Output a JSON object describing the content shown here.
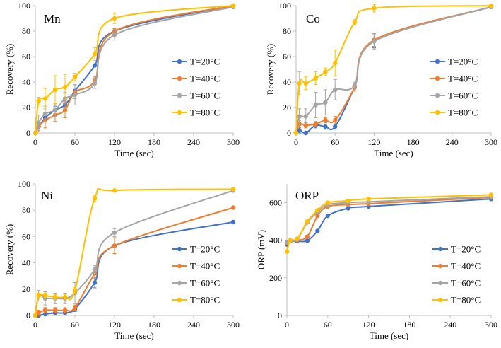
{
  "chart_data": [
    {
      "type": "line",
      "title": "Mn",
      "xlabel": "Time (sec)",
      "ylabel": "Recovery (%)",
      "xlim": [
        0,
        300
      ],
      "ylim": [
        0,
        100
      ],
      "xticks": [
        0,
        60,
        120,
        180,
        240,
        300
      ],
      "yticks": [
        0,
        20,
        40,
        60,
        80,
        100
      ],
      "legend_position": "right",
      "series": [
        {
          "name": "T=20°C",
          "color": "#4472c4",
          "x": [
            0,
            5,
            15,
            30,
            45,
            60,
            90,
            120,
            300
          ],
          "y": [
            0,
            5,
            12,
            18,
            22,
            33,
            53,
            80,
            100
          ],
          "err": [
            0,
            2,
            3,
            3,
            3,
            4,
            0,
            2,
            0
          ]
        },
        {
          "name": "T=40°C",
          "color": "#ed7d31",
          "x": [
            0,
            5,
            15,
            30,
            45,
            60,
            90,
            120,
            300
          ],
          "y": [
            0,
            5,
            10,
            14,
            18,
            32,
            41,
            80,
            100
          ],
          "err": [
            0,
            4,
            6,
            5,
            6,
            5,
            3,
            2,
            0
          ]
        },
        {
          "name": "T=60°C",
          "color": "#a5a5a5",
          "x": [
            0,
            5,
            15,
            30,
            45,
            60,
            90,
            120,
            300
          ],
          "y": [
            0,
            8,
            15,
            18,
            27,
            30,
            39,
            77,
            99
          ],
          "err": [
            0,
            6,
            6,
            5,
            5,
            8,
            4,
            4,
            0
          ]
        },
        {
          "name": "T=80°C",
          "color": "#ffc000",
          "x": [
            0,
            5,
            15,
            30,
            45,
            60,
            90,
            120,
            300
          ],
          "y": [
            0,
            25,
            27,
            34,
            36,
            44,
            62,
            90,
            100
          ],
          "err": [
            0,
            3,
            8,
            11,
            10,
            3,
            5,
            4,
            0
          ]
        }
      ]
    },
    {
      "type": "line",
      "title": "Co",
      "xlabel": "Time (sec)",
      "ylabel": "Recovery (%)",
      "xlim": [
        0,
        300
      ],
      "ylim": [
        0,
        100
      ],
      "xticks": [
        0,
        60,
        120,
        180,
        240,
        300
      ],
      "yticks": [
        0,
        20,
        40,
        60,
        80,
        100
      ],
      "legend_position": "right",
      "series": [
        {
          "name": "T=20°C",
          "color": "#4472c4",
          "x": [
            0,
            5,
            15,
            30,
            45,
            60,
            90,
            120,
            300
          ],
          "y": [
            0,
            2,
            0,
            6,
            5,
            5,
            36,
            72,
            99
          ],
          "err": [
            0,
            2,
            1,
            2,
            2,
            2,
            3,
            5,
            0
          ]
        },
        {
          "name": "T=40°C",
          "color": "#ed7d31",
          "x": [
            0,
            5,
            15,
            30,
            45,
            60,
            90,
            120,
            300
          ],
          "y": [
            0,
            7,
            6,
            7,
            10,
            10,
            36,
            73,
            99
          ],
          "err": [
            0,
            3,
            2,
            2,
            2,
            3,
            3,
            5,
            0
          ]
        },
        {
          "name": "T=60°C",
          "color": "#a5a5a5",
          "x": [
            0,
            5,
            15,
            30,
            45,
            60,
            90,
            120,
            300
          ],
          "y": [
            0,
            13,
            13,
            22,
            24,
            34,
            37,
            72,
            99
          ],
          "err": [
            0,
            6,
            6,
            10,
            10,
            8,
            3,
            6,
            0
          ]
        },
        {
          "name": "T=80°C",
          "color": "#ffc000",
          "x": [
            0,
            5,
            15,
            30,
            45,
            60,
            90,
            120,
            300
          ],
          "y": [
            0,
            39,
            39,
            43,
            48,
            55,
            87,
            98,
            100
          ],
          "err": [
            0,
            9,
            5,
            5,
            3,
            10,
            2,
            3,
            0
          ]
        }
      ]
    },
    {
      "type": "line",
      "title": "Ni",
      "xlabel": "Time (sec)",
      "ylabel": "Recovery (%)",
      "xlim": [
        0,
        300
      ],
      "ylim": [
        0,
        100
      ],
      "xticks": [
        0,
        60,
        120,
        180,
        240,
        300
      ],
      "yticks": [
        0,
        20,
        40,
        60,
        80,
        100
      ],
      "legend_position": "right",
      "series": [
        {
          "name": "T=20°C",
          "color": "#4472c4",
          "x": [
            0,
            5,
            15,
            30,
            45,
            60,
            90,
            120,
            300
          ],
          "y": [
            0,
            0,
            1,
            2,
            2,
            5,
            25,
            53,
            71
          ],
          "err": [
            0,
            1,
            1,
            1,
            1,
            2,
            4,
            6,
            0
          ]
        },
        {
          "name": "T=40°C",
          "color": "#ed7d31",
          "x": [
            0,
            5,
            15,
            30,
            45,
            60,
            90,
            120,
            300
          ],
          "y": [
            0,
            2,
            4,
            4,
            4,
            6,
            32,
            53,
            82
          ],
          "err": [
            0,
            2,
            2,
            2,
            2,
            2,
            4,
            6,
            0
          ]
        },
        {
          "name": "T=60°C",
          "color": "#a5a5a5",
          "x": [
            0,
            5,
            15,
            30,
            45,
            60,
            90,
            120,
            300
          ],
          "y": [
            0,
            15,
            13,
            13,
            13,
            17,
            35,
            63,
            95
          ],
          "err": [
            0,
            4,
            5,
            4,
            4,
            8,
            3,
            3,
            0
          ]
        },
        {
          "name": "T=80°C",
          "color": "#ffc000",
          "x": [
            0,
            5,
            15,
            30,
            45,
            60,
            90,
            120,
            300
          ],
          "y": [
            0,
            15,
            15,
            14,
            14,
            19,
            89,
            95,
            96
          ],
          "err": [
            0,
            2,
            2,
            2,
            2,
            2,
            2,
            0,
            0
          ]
        }
      ]
    },
    {
      "type": "line",
      "title": "ORP",
      "xlabel": "Time (sec)",
      "ylabel": "ORP (mV)",
      "xlim": [
        0,
        300
      ],
      "ylim": [
        0,
        700
      ],
      "xticks": [
        0,
        60,
        120,
        180,
        240,
        300
      ],
      "yticks": [
        0,
        200,
        400,
        600
      ],
      "legend_position": "right",
      "series": [
        {
          "name": "T=20°C",
          "color": "#4472c4",
          "x": [
            0,
            5,
            15,
            30,
            45,
            60,
            90,
            120,
            300
          ],
          "y": [
            378,
            395,
            395,
            398,
            450,
            530,
            570,
            580,
            620
          ],
          "err": [
            0,
            0,
            0,
            0,
            0,
            0,
            0,
            0,
            0
          ]
        },
        {
          "name": "T=40°C",
          "color": "#ed7d31",
          "x": [
            0,
            5,
            15,
            30,
            45,
            60,
            90,
            120,
            300
          ],
          "y": [
            385,
            398,
            400,
            420,
            530,
            580,
            590,
            595,
            628
          ],
          "err": [
            0,
            0,
            0,
            0,
            0,
            0,
            0,
            0,
            0
          ]
        },
        {
          "name": "T=60°C",
          "color": "#a5a5a5",
          "x": [
            0,
            5,
            15,
            30,
            45,
            60,
            90,
            120,
            300
          ],
          "y": [
            390,
            400,
            405,
            495,
            550,
            590,
            600,
            605,
            632
          ],
          "err": [
            0,
            0,
            0,
            0,
            0,
            0,
            0,
            0,
            0
          ]
        },
        {
          "name": "T=80°C",
          "color": "#ffc000",
          "x": [
            0,
            5,
            15,
            30,
            45,
            60,
            90,
            120,
            300
          ],
          "y": [
            340,
            400,
            408,
            500,
            560,
            600,
            610,
            620,
            642
          ],
          "err": [
            0,
            0,
            0,
            0,
            0,
            0,
            0,
            0,
            0
          ]
        }
      ]
    }
  ]
}
